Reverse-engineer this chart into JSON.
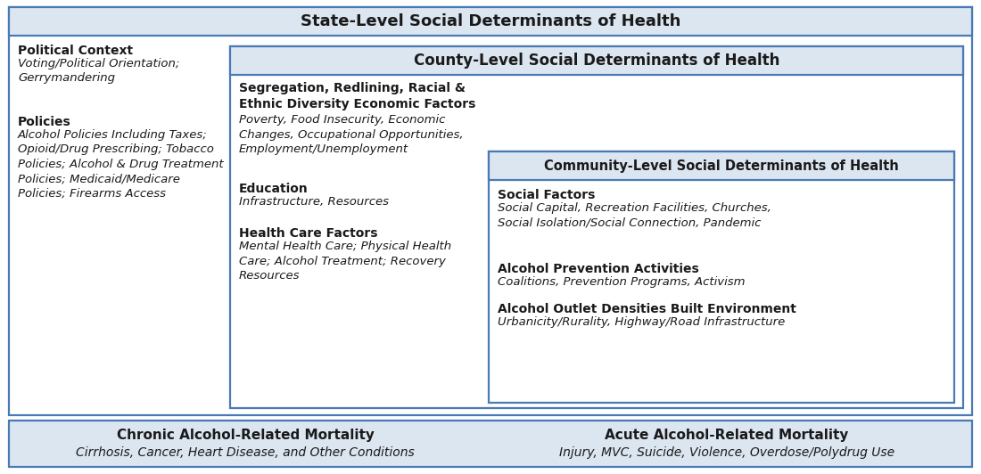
{
  "title": "State-Level Social Determinants of Health",
  "county_title": "County-Level Social Determinants of Health",
  "community_title": "Community-Level Social Determinants of Health",
  "header_bg": "#dce6f1",
  "box_edge": "#4a7ab5",
  "bottom_bg": "#dce6f1",
  "bottom_edge": "#4a7ab5",
  "text_color": "#1a1a1a",
  "bg_color": "#ffffff",
  "political_context_bold": "Political Context",
  "political_context_italic": "Voting/Political Orientation;\nGerrymandering",
  "policies_bold": "Policies",
  "policies_italic": "Alcohol Policies Including Taxes;\nOpioid/Drug Prescribing; Tobacco\nPolicies; Alcohol & Drug Treatment\nPolicies; Medicaid/Medicare\nPolicies; Firearms Access",
  "seg_bold": "Segregation, Redlining, Racial &\nEthnic Diversity Economic Factors",
  "seg_italic": "Poverty, Food Insecurity, Economic\nChanges, Occupational Opportunities,\nEmployment/Unemployment",
  "edu_bold": "Education",
  "edu_italic": "Infrastructure, Resources",
  "health_bold": "Health Care Factors",
  "health_italic": "Mental Health Care; Physical Health\nCare; Alcohol Treatment; Recovery\nResources",
  "social_bold": "Social Factors",
  "social_italic": "Social Capital, Recreation Facilities, Churches,\nSocial Isolation/Social Connection, Pandemic",
  "alcohol_prev_bold": "Alcohol Prevention Activities",
  "alcohol_prev_italic": "Coalitions, Prevention Programs, Activism",
  "alcohol_out_bold": "Alcohol Outlet Densities Built Environment",
  "alcohol_out_italic": "Urbanicity/Rurality, Highway/Road Infrastructure",
  "chronic_bold": "Chronic Alcohol-Related Mortality",
  "chronic_italic": "Cirrhosis, Cancer, Heart Disease, and Other Conditions",
  "acute_bold": "Acute Alcohol-Related Mortality",
  "acute_italic": "Injury, MVC, Suicide, Violence, Overdose/Polydrug Use"
}
